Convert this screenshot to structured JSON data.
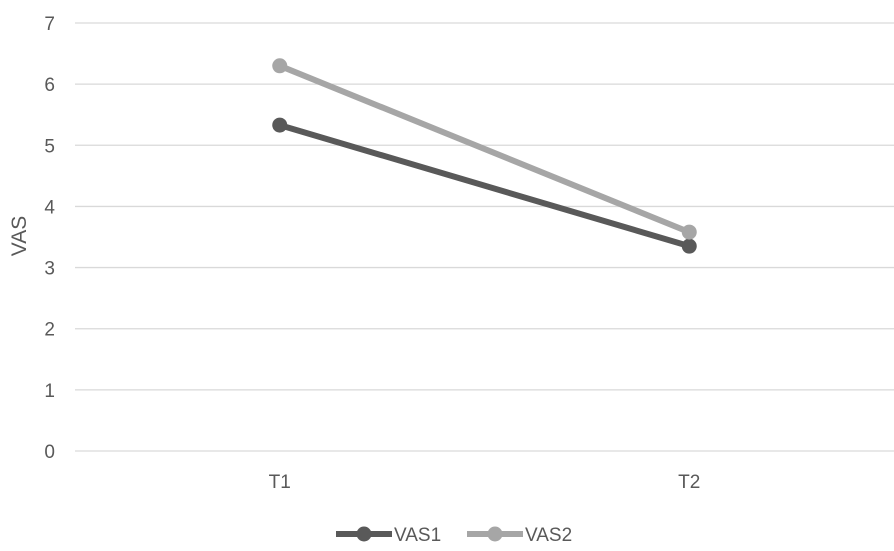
{
  "chart_data": {
    "type": "line",
    "categories": [
      "T1",
      "T2"
    ],
    "series": [
      {
        "name": "VAS1",
        "values": [
          5.33,
          3.35
        ],
        "color": "#595959"
      },
      {
        "name": "VAS2",
        "values": [
          6.3,
          3.58
        ],
        "color": "#a6a6a6"
      }
    ],
    "ylabel": "VAS",
    "xlabel": "",
    "ylim": [
      0,
      7
    ],
    "yticks": [
      "0",
      "1",
      "2",
      "3",
      "4",
      "5",
      "6",
      "7"
    ],
    "grid": true,
    "legend": "bottom-center"
  }
}
